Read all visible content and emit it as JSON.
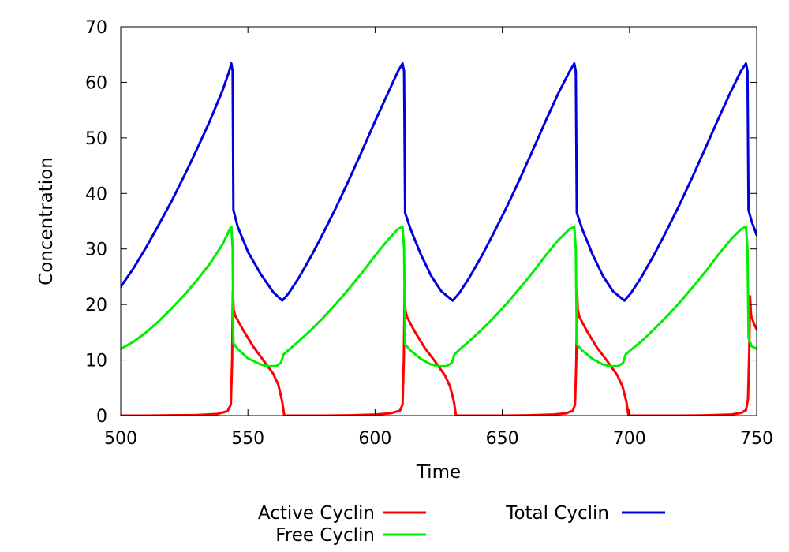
{
  "chart_data": {
    "type": "line",
    "xlabel": "Time",
    "ylabel": "Concentration",
    "xlim": [
      500,
      750
    ],
    "ylim": [
      0,
      70
    ],
    "xticks": [
      500,
      550,
      600,
      650,
      700,
      750
    ],
    "yticks": [
      0,
      10,
      20,
      30,
      40,
      50,
      60,
      70
    ],
    "grid": false,
    "legend_position": "bottom",
    "series": [
      {
        "name": "Active Cyclin",
        "color": "#ff0000",
        "points": [
          [
            500,
            0
          ],
          [
            510,
            0
          ],
          [
            520,
            0.05
          ],
          [
            530,
            0.1
          ],
          [
            538,
            0.3
          ],
          [
            542,
            0.8
          ],
          [
            543.3,
            2
          ],
          [
            543.8,
            10
          ],
          [
            544.1,
            22.5
          ],
          [
            544.4,
            19
          ],
          [
            545,
            18
          ],
          [
            548,
            15.5
          ],
          [
            552,
            12.5
          ],
          [
            556,
            10
          ],
          [
            560,
            7.5
          ],
          [
            562,
            5.5
          ],
          [
            563.5,
            2.5
          ],
          [
            564.3,
            0
          ],
          [
            570,
            0
          ],
          [
            580,
            0
          ],
          [
            590,
            0.05
          ],
          [
            600,
            0.2
          ],
          [
            606,
            0.4
          ],
          [
            609.8,
            0.9
          ],
          [
            610.8,
            2
          ],
          [
            611.3,
            10
          ],
          [
            611.6,
            23
          ],
          [
            611.9,
            19
          ],
          [
            612.5,
            17.8
          ],
          [
            615.5,
            15.2
          ],
          [
            619.5,
            12.2
          ],
          [
            623.5,
            9.8
          ],
          [
            627.5,
            7.2
          ],
          [
            629.5,
            5.2
          ],
          [
            631,
            2.5
          ],
          [
            631.8,
            0
          ],
          [
            640,
            0
          ],
          [
            650,
            0
          ],
          [
            660,
            0.05
          ],
          [
            670,
            0.2
          ],
          [
            675,
            0.4
          ],
          [
            677.8,
            0.9
          ],
          [
            678.6,
            2
          ],
          [
            679.1,
            10
          ],
          [
            679.4,
            22.5
          ],
          [
            679.7,
            19
          ],
          [
            680.3,
            17.8
          ],
          [
            683.3,
            15.2
          ],
          [
            687.3,
            12.2
          ],
          [
            691.3,
            9.8
          ],
          [
            695.3,
            7.2
          ],
          [
            697.3,
            5.2
          ],
          [
            698.8,
            2.5
          ],
          [
            699.6,
            0
          ],
          [
            710,
            0
          ],
          [
            720,
            0
          ],
          [
            730,
            0.05
          ],
          [
            740,
            0.2
          ],
          [
            744,
            0.5
          ],
          [
            745.8,
            1
          ],
          [
            746.6,
            3
          ],
          [
            747.1,
            12
          ],
          [
            747.4,
            21.5
          ],
          [
            747.8,
            18
          ],
          [
            749,
            16.5
          ],
          [
            750,
            15.5
          ]
        ]
      },
      {
        "name": "Free Cyclin",
        "color": "#00ee00",
        "points": [
          [
            500,
            12
          ],
          [
            505,
            13.3
          ],
          [
            510,
            15
          ],
          [
            515,
            17
          ],
          [
            520,
            19.3
          ],
          [
            525,
            21.7
          ],
          [
            530,
            24.4
          ],
          [
            535,
            27.3
          ],
          [
            540,
            30.8
          ],
          [
            542.5,
            33.2
          ],
          [
            543.5,
            34
          ],
          [
            544,
            30
          ],
          [
            544.3,
            13
          ],
          [
            546,
            12
          ],
          [
            550,
            10.3
          ],
          [
            555,
            9.2
          ],
          [
            558,
            8.9
          ],
          [
            561,
            8.9
          ],
          [
            563,
            9.5
          ],
          [
            564,
            11
          ],
          [
            566,
            11.8
          ],
          [
            570,
            13.4
          ],
          [
            575,
            15.5
          ],
          [
            580,
            17.8
          ],
          [
            585,
            20.3
          ],
          [
            590,
            23
          ],
          [
            595,
            25.8
          ],
          [
            600,
            28.8
          ],
          [
            605,
            31.6
          ],
          [
            609,
            33.6
          ],
          [
            610.8,
            34
          ],
          [
            611.4,
            30
          ],
          [
            611.8,
            12.8
          ],
          [
            614,
            11.7
          ],
          [
            618,
            10.2
          ],
          [
            622,
            9.2
          ],
          [
            625,
            8.9
          ],
          [
            628,
            8.9
          ],
          [
            630.2,
            9.5
          ],
          [
            631.2,
            11
          ],
          [
            633,
            11.8
          ],
          [
            637,
            13.4
          ],
          [
            642,
            15.5
          ],
          [
            647,
            17.8
          ],
          [
            652,
            20.3
          ],
          [
            657,
            23
          ],
          [
            662,
            25.8
          ],
          [
            667,
            28.8
          ],
          [
            672,
            31.6
          ],
          [
            676.5,
            33.6
          ],
          [
            678.3,
            34
          ],
          [
            678.9,
            30
          ],
          [
            679.3,
            12.8
          ],
          [
            681.5,
            11.7
          ],
          [
            685.5,
            10.2
          ],
          [
            689.5,
            9.2
          ],
          [
            692.5,
            8.9
          ],
          [
            695.5,
            8.9
          ],
          [
            697.5,
            9.5
          ],
          [
            698.5,
            11
          ],
          [
            700.5,
            11.8
          ],
          [
            705,
            13.5
          ],
          [
            710,
            15.7
          ],
          [
            715,
            18
          ],
          [
            720,
            20.5
          ],
          [
            725,
            23.2
          ],
          [
            730,
            26
          ],
          [
            735,
            29
          ],
          [
            740,
            31.8
          ],
          [
            744,
            33.6
          ],
          [
            745.8,
            34
          ],
          [
            746.4,
            30
          ],
          [
            746.8,
            14
          ],
          [
            748,
            12.5
          ],
          [
            750,
            12
          ]
        ]
      },
      {
        "name": "Total Cyclin",
        "color": "#0000dd",
        "points": [
          [
            500,
            23.2
          ],
          [
            505,
            26.5
          ],
          [
            510,
            30.3
          ],
          [
            515,
            34.4
          ],
          [
            520,
            38.6
          ],
          [
            525,
            43.2
          ],
          [
            530,
            48
          ],
          [
            535,
            53
          ],
          [
            540,
            58.5
          ],
          [
            542.5,
            61.8
          ],
          [
            543.5,
            63.4
          ],
          [
            544,
            62
          ],
          [
            544.3,
            37
          ],
          [
            546,
            34
          ],
          [
            550,
            29.5
          ],
          [
            555,
            25.5
          ],
          [
            560,
            22.2
          ],
          [
            563.5,
            20.7
          ],
          [
            566,
            22
          ],
          [
            570,
            24.8
          ],
          [
            575,
            28.8
          ],
          [
            580,
            33.2
          ],
          [
            585,
            37.8
          ],
          [
            590,
            42.7
          ],
          [
            595,
            47.8
          ],
          [
            600,
            53
          ],
          [
            605,
            58
          ],
          [
            609,
            62
          ],
          [
            610.8,
            63.4
          ],
          [
            611.4,
            62
          ],
          [
            611.8,
            36.5
          ],
          [
            614,
            33.5
          ],
          [
            618,
            29
          ],
          [
            622,
            25.2
          ],
          [
            626,
            22.4
          ],
          [
            630.5,
            20.7
          ],
          [
            633,
            22
          ],
          [
            637,
            24.8
          ],
          [
            642,
            28.8
          ],
          [
            647,
            33.2
          ],
          [
            652,
            37.8
          ],
          [
            657,
            42.7
          ],
          [
            662,
            47.8
          ],
          [
            667,
            53
          ],
          [
            672,
            58
          ],
          [
            676.5,
            62
          ],
          [
            678.3,
            63.4
          ],
          [
            678.9,
            62
          ],
          [
            679.3,
            36.5
          ],
          [
            681.5,
            33.5
          ],
          [
            685.5,
            29
          ],
          [
            689.5,
            25.2
          ],
          [
            693.5,
            22.4
          ],
          [
            698,
            20.7
          ],
          [
            700.5,
            22
          ],
          [
            704.5,
            24.8
          ],
          [
            709.5,
            28.8
          ],
          [
            714.5,
            33.2
          ],
          [
            719.5,
            37.8
          ],
          [
            724.5,
            42.7
          ],
          [
            729.5,
            47.8
          ],
          [
            734.5,
            53
          ],
          [
            739.5,
            58
          ],
          [
            743.8,
            62
          ],
          [
            745.8,
            63.4
          ],
          [
            746.4,
            62
          ],
          [
            746.8,
            37
          ],
          [
            748,
            35
          ],
          [
            750,
            32.5
          ]
        ]
      }
    ]
  }
}
